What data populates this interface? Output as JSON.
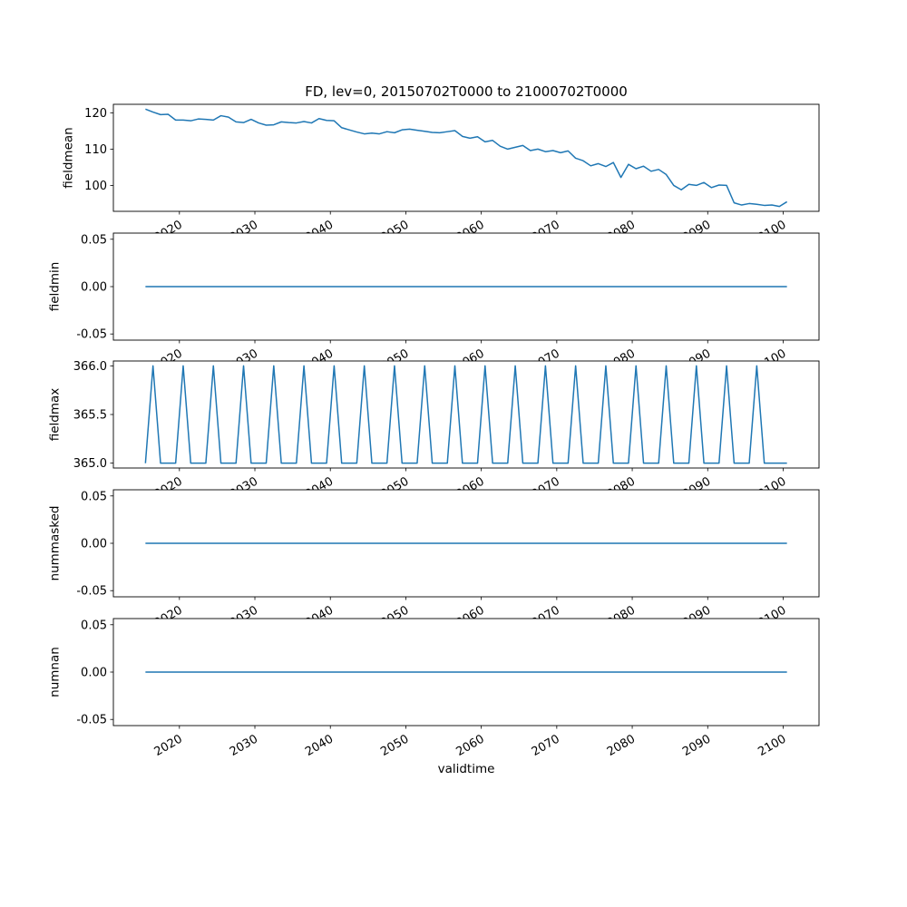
{
  "chart_data": {
    "type": "line",
    "title": "FD, lev=0, 20150702T0000 to 21000702T0000",
    "xlabel": "validtime",
    "line_color": "#1f77b4",
    "background_color": "#ffffff",
    "grid": false,
    "legend": "none",
    "x_point_offset": 0.5,
    "xlim": [
      2011.25,
      2104.75
    ],
    "xticks": [
      2020,
      2030,
      2040,
      2050,
      2060,
      2070,
      2080,
      2090,
      2100
    ],
    "xtick_labels": [
      "2020",
      "2030",
      "2040",
      "2050",
      "2060",
      "2070",
      "2080",
      "2090",
      "2100"
    ],
    "xtick_rotation_deg": 30,
    "x_years": [
      2015,
      2016,
      2017,
      2018,
      2019,
      2020,
      2021,
      2022,
      2023,
      2024,
      2025,
      2026,
      2027,
      2028,
      2029,
      2030,
      2031,
      2032,
      2033,
      2034,
      2035,
      2036,
      2037,
      2038,
      2039,
      2040,
      2041,
      2042,
      2043,
      2044,
      2045,
      2046,
      2047,
      2048,
      2049,
      2050,
      2051,
      2052,
      2053,
      2054,
      2055,
      2056,
      2057,
      2058,
      2059,
      2060,
      2061,
      2062,
      2063,
      2064,
      2065,
      2066,
      2067,
      2068,
      2069,
      2070,
      2071,
      2072,
      2073,
      2074,
      2075,
      2076,
      2077,
      2078,
      2079,
      2080,
      2081,
      2082,
      2083,
      2084,
      2085,
      2086,
      2087,
      2088,
      2089,
      2090,
      2091,
      2092,
      2093,
      2094,
      2095,
      2096,
      2097,
      2098,
      2099,
      2100
    ],
    "subplots": [
      {
        "ylabel": "fieldmean",
        "ylim": [
          92.86,
          122.34
        ],
        "yticks": [
          100,
          110,
          120
        ],
        "ytick_labels": [
          "100",
          "110",
          "120"
        ],
        "values": [
          121.0,
          120.2,
          119.5,
          119.6,
          118.0,
          118.0,
          117.8,
          118.3,
          118.2,
          118.0,
          119.2,
          118.8,
          117.5,
          117.3,
          118.2,
          117.2,
          116.6,
          116.7,
          117.5,
          117.3,
          117.2,
          117.6,
          117.2,
          118.4,
          117.9,
          117.8,
          115.9,
          115.3,
          114.7,
          114.2,
          114.4,
          114.2,
          114.8,
          114.5,
          115.3,
          115.5,
          115.2,
          114.9,
          114.6,
          114.5,
          114.8,
          115.1,
          113.5,
          113.0,
          113.4,
          112.0,
          112.4,
          110.8,
          110.0,
          110.5,
          111.0,
          109.6,
          110.0,
          109.3,
          109.6,
          109.0,
          109.5,
          107.5,
          106.8,
          105.4,
          106.0,
          105.2,
          106.3,
          102.2,
          105.8,
          104.6,
          105.3,
          103.9,
          104.4,
          103.0,
          100.0,
          98.8,
          100.3,
          100.0,
          100.8,
          99.4,
          100.1,
          100.0,
          95.2,
          94.6,
          95.0,
          94.8,
          94.5,
          94.6,
          94.2,
          95.5
        ]
      },
      {
        "ylabel": "fieldmin",
        "ylim": [
          -0.0565,
          0.0565
        ],
        "yticks": [
          -0.05,
          0.0,
          0.05
        ],
        "ytick_labels": [
          "-0.05",
          "0.00",
          "0.05"
        ],
        "values": [
          0,
          0,
          0,
          0,
          0,
          0,
          0,
          0,
          0,
          0,
          0,
          0,
          0,
          0,
          0,
          0,
          0,
          0,
          0,
          0,
          0,
          0,
          0,
          0,
          0,
          0,
          0,
          0,
          0,
          0,
          0,
          0,
          0,
          0,
          0,
          0,
          0,
          0,
          0,
          0,
          0,
          0,
          0,
          0,
          0,
          0,
          0,
          0,
          0,
          0,
          0,
          0,
          0,
          0,
          0,
          0,
          0,
          0,
          0,
          0,
          0,
          0,
          0,
          0,
          0,
          0,
          0,
          0,
          0,
          0,
          0,
          0,
          0,
          0,
          0,
          0,
          0,
          0,
          0,
          0,
          0,
          0,
          0,
          0,
          0,
          0
        ]
      },
      {
        "ylabel": "fieldmax",
        "ylim": [
          364.95,
          366.05
        ],
        "yticks": [
          365.0,
          365.5,
          366.0
        ],
        "ytick_labels": [
          "365.0",
          "365.5",
          "366.0"
        ],
        "values": [
          365,
          366,
          365,
          365,
          365,
          366,
          365,
          365,
          365,
          366,
          365,
          365,
          365,
          366,
          365,
          365,
          365,
          366,
          365,
          365,
          365,
          366,
          365,
          365,
          365,
          366,
          365,
          365,
          365,
          366,
          365,
          365,
          365,
          366,
          365,
          365,
          365,
          366,
          365,
          365,
          365,
          366,
          365,
          365,
          365,
          366,
          365,
          365,
          365,
          366,
          365,
          365,
          365,
          366,
          365,
          365,
          365,
          366,
          365,
          365,
          365,
          366,
          365,
          365,
          365,
          366,
          365,
          365,
          365,
          366,
          365,
          365,
          365,
          366,
          365,
          365,
          365,
          366,
          365,
          365,
          365,
          366,
          365,
          365,
          365,
          365
        ]
      },
      {
        "ylabel": "nummasked",
        "ylim": [
          -0.0565,
          0.0565
        ],
        "yticks": [
          -0.05,
          0.0,
          0.05
        ],
        "ytick_labels": [
          "-0.05",
          "0.00",
          "0.05"
        ],
        "values": [
          0,
          0,
          0,
          0,
          0,
          0,
          0,
          0,
          0,
          0,
          0,
          0,
          0,
          0,
          0,
          0,
          0,
          0,
          0,
          0,
          0,
          0,
          0,
          0,
          0,
          0,
          0,
          0,
          0,
          0,
          0,
          0,
          0,
          0,
          0,
          0,
          0,
          0,
          0,
          0,
          0,
          0,
          0,
          0,
          0,
          0,
          0,
          0,
          0,
          0,
          0,
          0,
          0,
          0,
          0,
          0,
          0,
          0,
          0,
          0,
          0,
          0,
          0,
          0,
          0,
          0,
          0,
          0,
          0,
          0,
          0,
          0,
          0,
          0,
          0,
          0,
          0,
          0,
          0,
          0,
          0,
          0,
          0,
          0,
          0,
          0
        ]
      },
      {
        "ylabel": "numnan",
        "ylim": [
          -0.0565,
          0.0565
        ],
        "yticks": [
          -0.05,
          0.0,
          0.05
        ],
        "ytick_labels": [
          "-0.05",
          "0.00",
          "0.05"
        ],
        "values": [
          0,
          0,
          0,
          0,
          0,
          0,
          0,
          0,
          0,
          0,
          0,
          0,
          0,
          0,
          0,
          0,
          0,
          0,
          0,
          0,
          0,
          0,
          0,
          0,
          0,
          0,
          0,
          0,
          0,
          0,
          0,
          0,
          0,
          0,
          0,
          0,
          0,
          0,
          0,
          0,
          0,
          0,
          0,
          0,
          0,
          0,
          0,
          0,
          0,
          0,
          0,
          0,
          0,
          0,
          0,
          0,
          0,
          0,
          0,
          0,
          0,
          0,
          0,
          0,
          0,
          0,
          0,
          0,
          0,
          0,
          0,
          0,
          0,
          0,
          0,
          0,
          0,
          0,
          0,
          0,
          0,
          0,
          0,
          0,
          0,
          0
        ]
      }
    ]
  }
}
